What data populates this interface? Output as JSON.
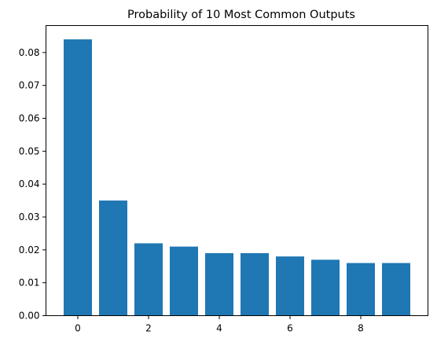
{
  "chart_data": {
    "type": "bar",
    "title": "Probability of 10 Most Common Outputs",
    "xlabel": "",
    "ylabel": "",
    "categories": [
      0,
      1,
      2,
      3,
      4,
      5,
      6,
      7,
      8,
      9
    ],
    "values": [
      0.084,
      0.035,
      0.022,
      0.021,
      0.019,
      0.019,
      0.018,
      0.017,
      0.016,
      0.016
    ],
    "xlim": [
      -0.9,
      9.9
    ],
    "ylim": [
      0,
      0.0882
    ],
    "xticks": [
      0,
      2,
      4,
      6,
      8
    ],
    "yticks": [
      0.0,
      0.01,
      0.02,
      0.03,
      0.04,
      0.05,
      0.06,
      0.07,
      0.08
    ],
    "ytick_labels": [
      "0.00",
      "0.01",
      "0.02",
      "0.03",
      "0.04",
      "0.05",
      "0.06",
      "0.07",
      "0.08"
    ],
    "bar_width": 0.8,
    "bar_color": "#1f77b4",
    "grid": false,
    "legend": "none"
  }
}
